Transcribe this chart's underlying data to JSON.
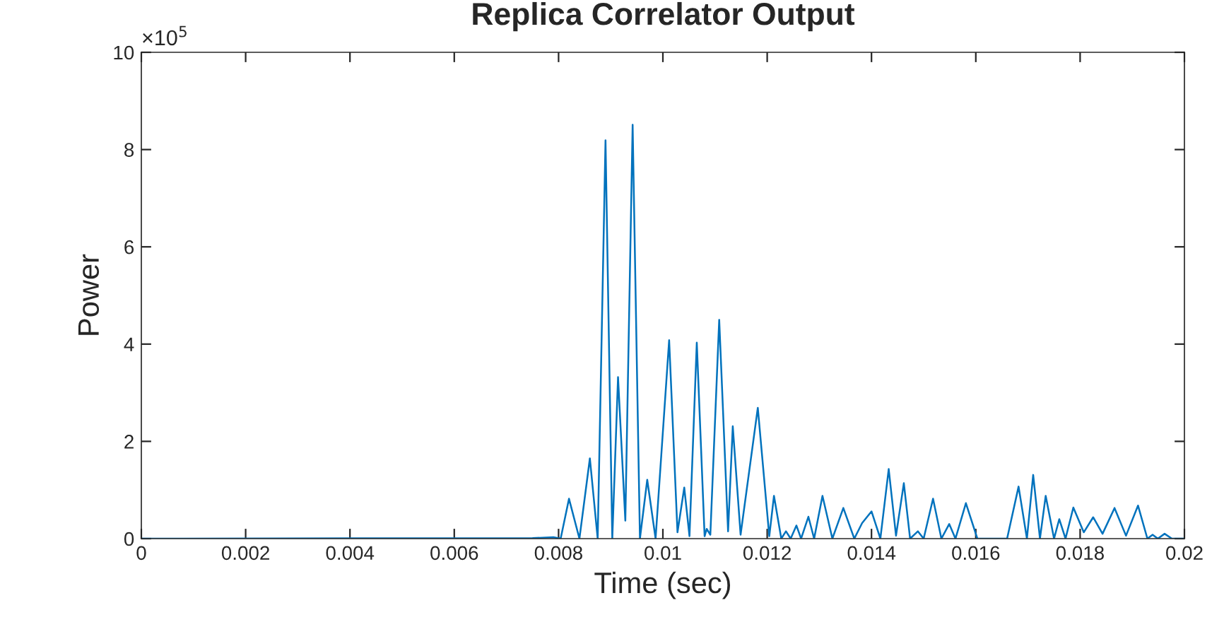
{
  "chart_data": {
    "type": "line",
    "title": "Replica Correlator Output",
    "xlabel": "Time (sec)",
    "ylabel": "Power",
    "annotations": [
      "×10$^{5}$"
    ],
    "xlim": [
      0,
      0.02
    ],
    "xticks": [
      0,
      0.002,
      0.004,
      0.006,
      0.008,
      0.01,
      0.012,
      0.014,
      0.016,
      0.018,
      0.02
    ],
    "ylim": [
      0,
      10
    ],
    "yticks": [
      0,
      2,
      4,
      6,
      8,
      10
    ],
    "grid": false,
    "legend": false,
    "series": [
      {
        "color": "#0072bd",
        "x": [
          0,
          0.0075,
          0.0079,
          0.00804,
          0.0082,
          0.0084,
          0.0086,
          0.00875,
          0.0089,
          0.00903,
          0.00914,
          0.00928,
          0.00942,
          0.00956,
          0.0097,
          0.00986,
          0.01012,
          0.01028,
          0.01041,
          0.01051,
          0.01065,
          0.0108,
          0.01084,
          0.01091,
          0.01108,
          0.01125,
          0.01134,
          0.01149,
          0.01182,
          0.01204,
          0.01213,
          0.01227,
          0.01236,
          0.01245,
          0.01256,
          0.01265,
          0.01279,
          0.0129,
          0.01306,
          0.01325,
          0.01346,
          0.01367,
          0.01382,
          0.014,
          0.01417,
          0.01433,
          0.01447,
          0.01462,
          0.01474,
          0.01489,
          0.015,
          0.01518,
          0.01534,
          0.01549,
          0.01561,
          0.01581,
          0.01603,
          0.0166,
          0.01682,
          0.01698,
          0.0171,
          0.01723,
          0.01734,
          0.0175,
          0.0176,
          0.01772,
          0.01787,
          0.01807,
          0.01825,
          0.01843,
          0.01866,
          0.01888,
          0.01911,
          0.01929,
          0.01939,
          0.01949,
          0.01962,
          0.01976,
          0.02
        ],
        "values": [
          0,
          0.01,
          0.03,
          0,
          0.82,
          0,
          1.65,
          0,
          8.19,
          0,
          3.32,
          0.37,
          8.51,
          0,
          1.21,
          0,
          4.08,
          0.13,
          1.05,
          0.05,
          4.03,
          0.05,
          0.2,
          0.08,
          4.5,
          0.15,
          2.31,
          0.08,
          2.69,
          0.05,
          0.88,
          0,
          0.15,
          0,
          0.27,
          0,
          0.45,
          0,
          0.88,
          0,
          0.63,
          0,
          0.32,
          0.56,
          0,
          1.43,
          0.06,
          1.14,
          0,
          0.15,
          0,
          0.82,
          0,
          0.3,
          0,
          0.73,
          0,
          0,
          1.07,
          0,
          1.31,
          0,
          0.88,
          0,
          0.4,
          0,
          0.64,
          0.13,
          0.44,
          0.1,
          0.63,
          0.06,
          0.68,
          0,
          0.08,
          0,
          0.1,
          0,
          0
        ]
      }
    ]
  }
}
